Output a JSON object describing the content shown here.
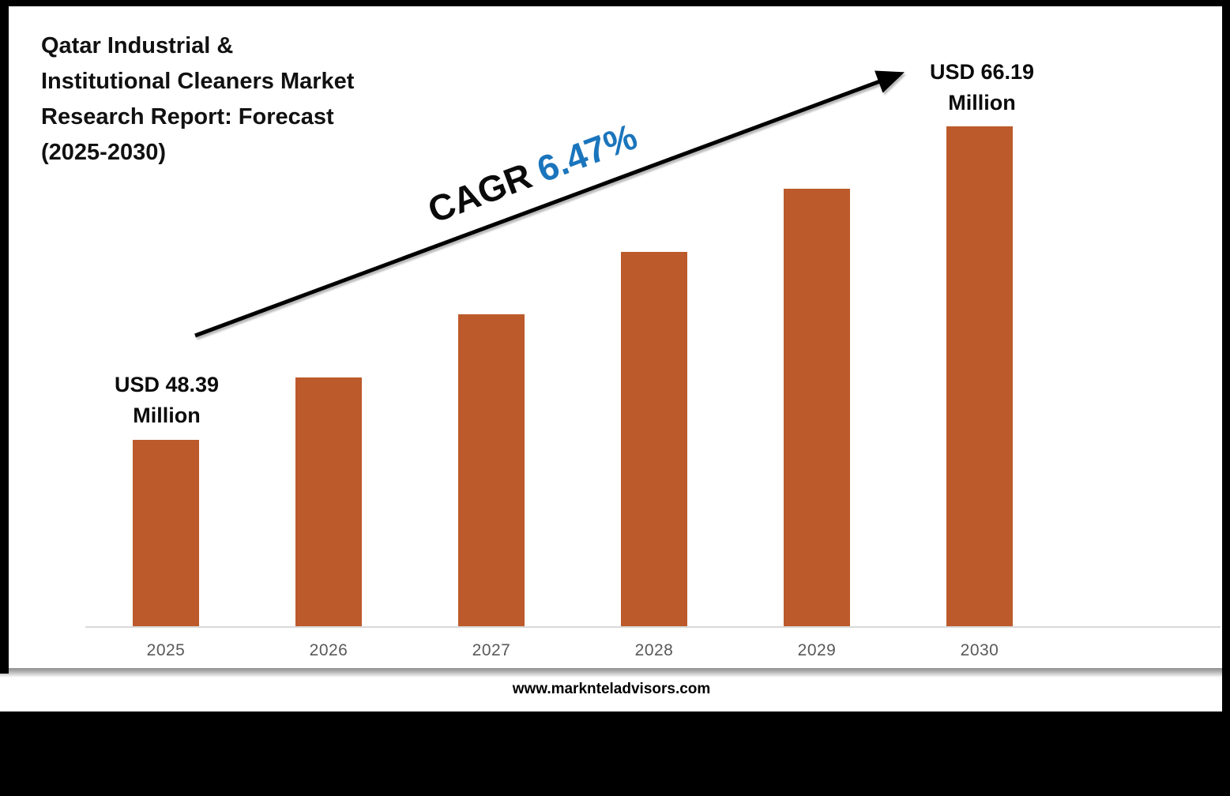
{
  "title": {
    "lines": [
      "Qatar Industrial &",
      "Institutional Cleaners Market",
      "Research Report: Forecast",
      "(2025-2030)"
    ]
  },
  "cagr": {
    "prefix": "CAGR",
    "value": "6.47%",
    "prefix_color": "#0b0b0b",
    "value_color": "#1B75BC"
  },
  "labels": {
    "first_bar": {
      "line1": "USD 48.39",
      "line2": "Million"
    },
    "last_bar": {
      "line1": "USD 66.19",
      "line2": "Million"
    }
  },
  "footer": {
    "website": "www.marknteladvisors.com"
  },
  "chart_data": {
    "type": "bar",
    "title": "Qatar Industrial & Institutional Cleaners Market Research Report: Forecast (2025-2030)",
    "categories": [
      "2025",
      "2026",
      "2027",
      "2028",
      "2029",
      "2030"
    ],
    "values": [
      48.39,
      51.95,
      55.51,
      59.07,
      62.63,
      66.19
    ],
    "labeled_points": [
      {
        "category": "2025",
        "label": "USD 48.39 Million"
      },
      {
        "category": "2030",
        "label": "USD 66.19 Million"
      }
    ],
    "annotations": [
      {
        "text": "CAGR 6.47%",
        "type": "trend-arrow"
      }
    ],
    "bar_color": "#BC5A2B",
    "xlabel": "",
    "ylabel": "",
    "value_axis_visible": false,
    "value_axis_baseline": 37.76,
    "grid": false,
    "legend": false,
    "tick_label_color": "#595959"
  }
}
